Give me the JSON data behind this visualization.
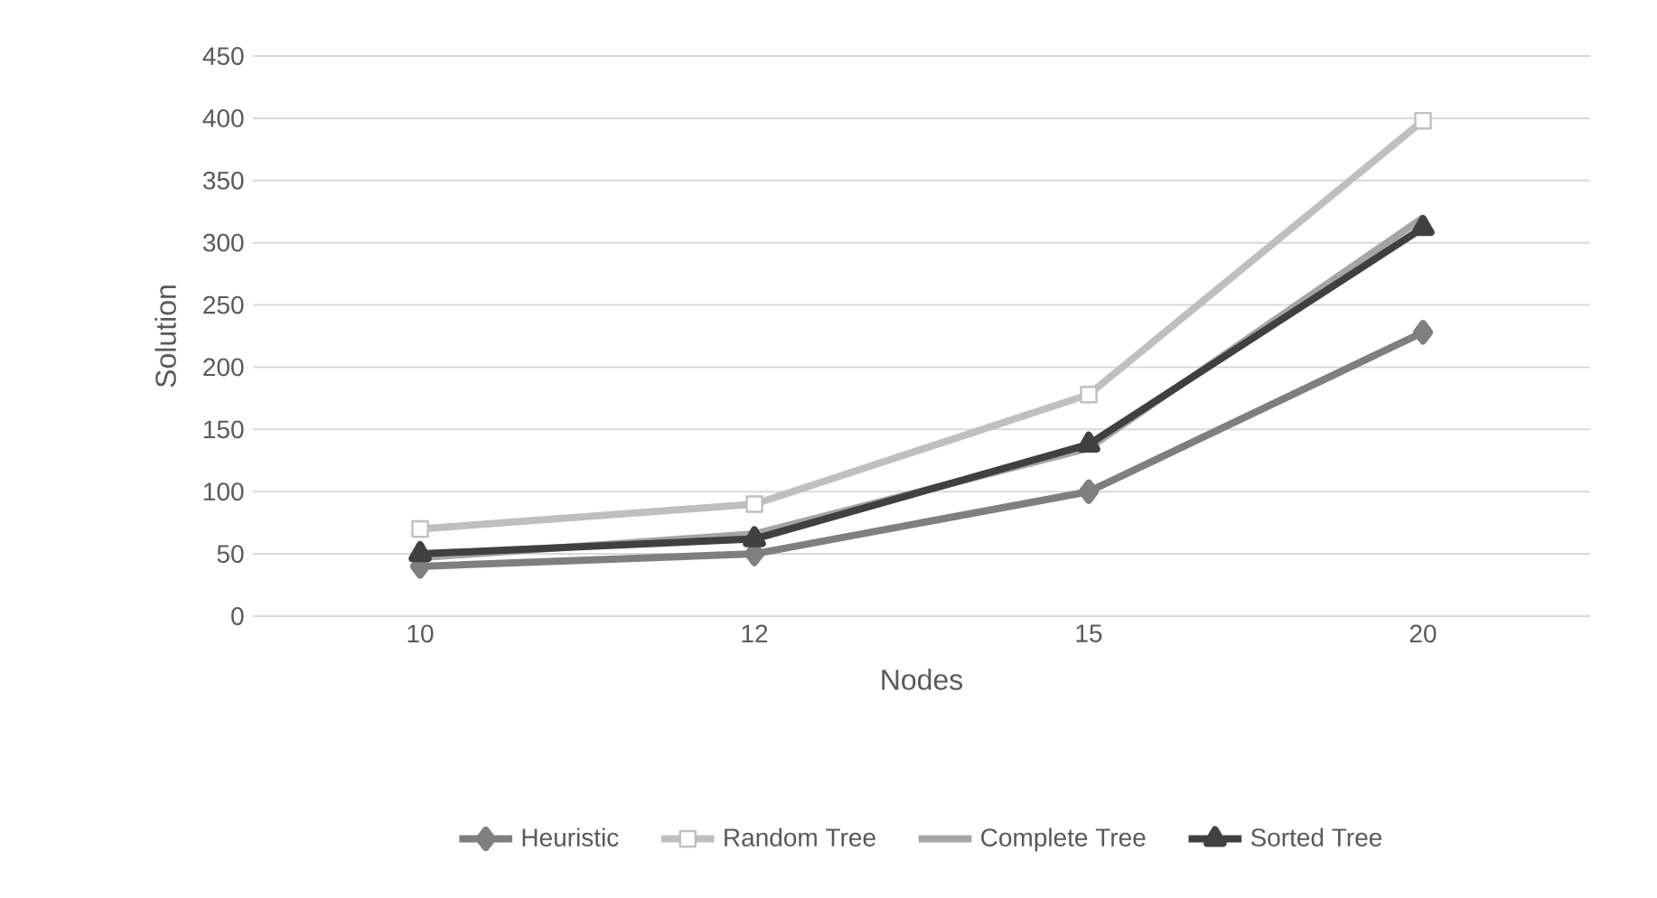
{
  "chart_data": {
    "type": "line",
    "xlabel": "Nodes",
    "ylabel": "Solution",
    "categories": [
      "10",
      "12",
      "15",
      "20"
    ],
    "series": [
      {
        "name": "Heuristic",
        "color": "#7f7f7f",
        "marker": "diamond",
        "values": [
          40,
          50,
          100,
          228
        ]
      },
      {
        "name": "Random Tree",
        "color": "#bfbfbf",
        "marker": "square",
        "values": [
          70,
          90,
          178,
          398
        ]
      },
      {
        "name": "Complete Tree",
        "color": "#a5a5a5",
        "marker": "none",
        "values": [
          47,
          66,
          135,
          320
        ]
      },
      {
        "name": "Sorted Tree",
        "color": "#404040",
        "marker": "triangle",
        "values": [
          50,
          62,
          138,
          312
        ]
      }
    ],
    "ylim": [
      0,
      450
    ],
    "yticks": [
      0,
      50,
      100,
      150,
      200,
      250,
      300,
      350,
      400,
      450
    ],
    "grid": "y",
    "legend": "bottom",
    "line_style": "solid"
  }
}
